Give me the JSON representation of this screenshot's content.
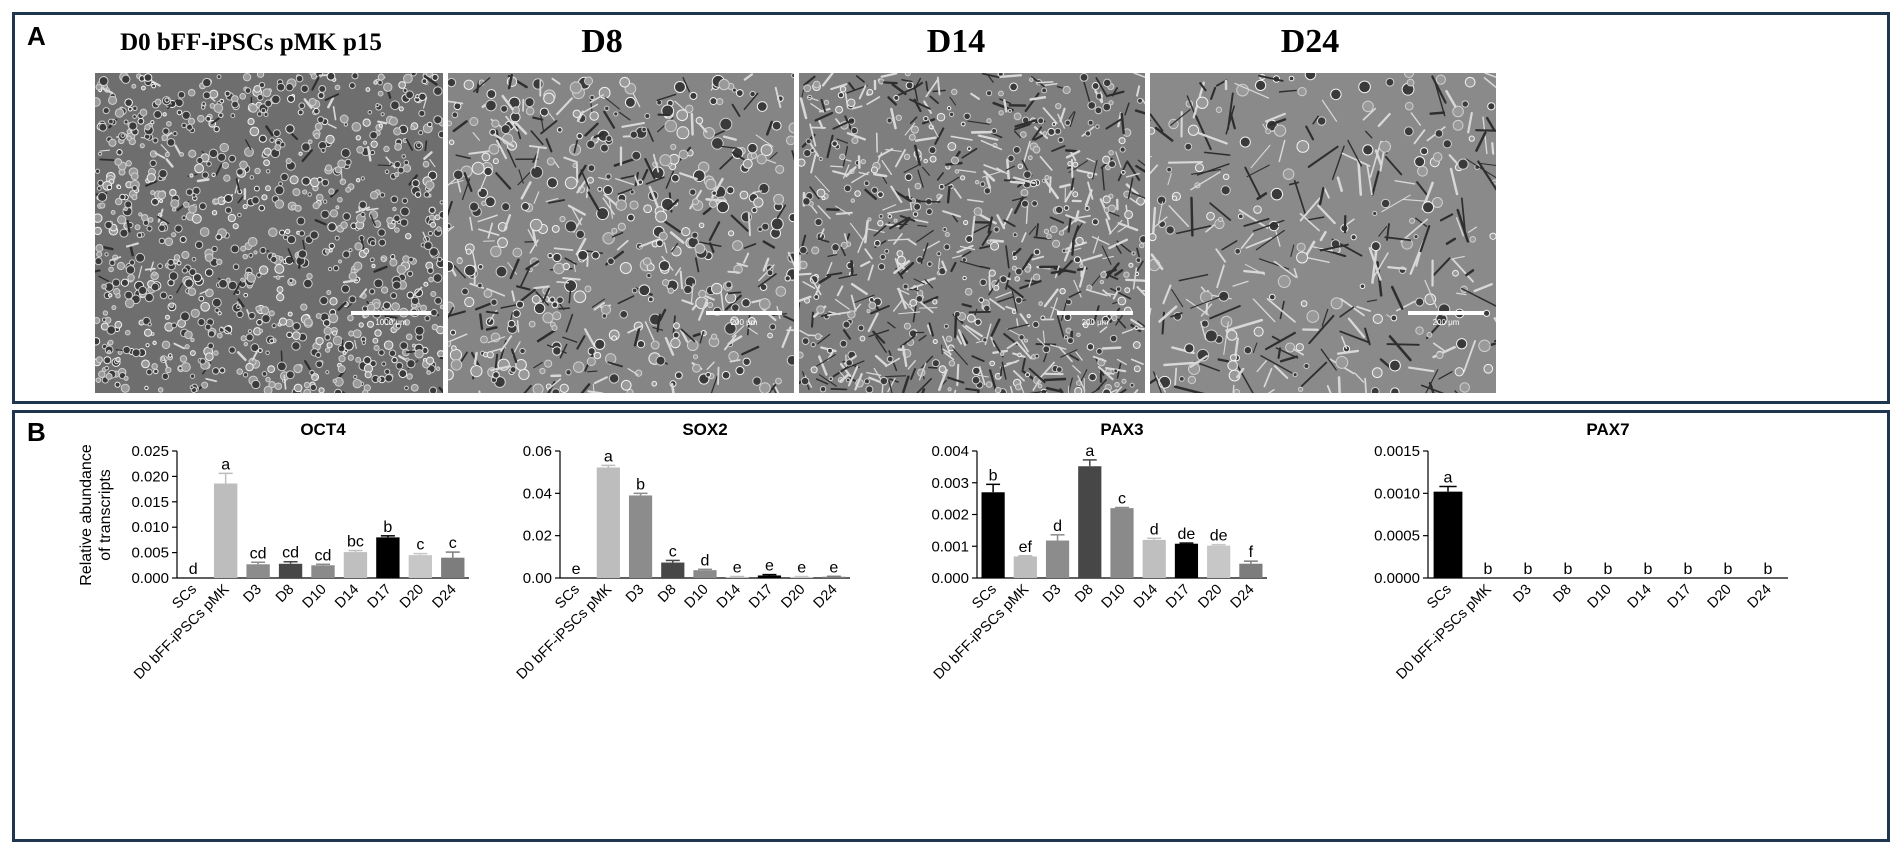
{
  "panel_a": {
    "letter": "A",
    "images": [
      {
        "title": "D0 bFF-iPSCs pMK p15",
        "scale_bar": "1000 μm"
      },
      {
        "title": "D8",
        "scale_bar": "200 μm"
      },
      {
        "title": "D14",
        "scale_bar": "200 μm"
      },
      {
        "title": "D24",
        "scale_bar": "200 μm"
      }
    ]
  },
  "panel_b": {
    "letter": "B"
  },
  "chart_data": [
    {
      "type": "bar",
      "title": "OCT4",
      "ylabel": [
        "Relative abundance",
        "of transcripts"
      ],
      "xlabel": "",
      "ylim": [
        0,
        0.025
      ],
      "yticks": [
        "0.000",
        "0.005",
        "0.010",
        "0.015",
        "0.020",
        "0.025"
      ],
      "categories": [
        "SCs",
        "D0 bFF-iPSCs pMK",
        "D3",
        "D8",
        "D10",
        "D14",
        "D17",
        "D20",
        "D24"
      ],
      "values": [
        0,
        0.0186,
        0.0027,
        0.0028,
        0.0025,
        0.0051,
        0.008,
        0.0045,
        0.004
      ],
      "errors": [
        0,
        0.002,
        0.0004,
        0.0004,
        0.0002,
        0.0003,
        0.0003,
        0.0003,
        0.0011
      ],
      "letters": [
        "d",
        "a",
        "cd",
        "cd",
        "cd",
        "bc",
        "b",
        "c",
        "c"
      ],
      "colors": [
        "#000000",
        "#bdbdbd",
        "#8c8c8c",
        "#474747",
        "#8a8a8a",
        "#bfbfbf",
        "#000000",
        "#c7c7c7",
        "#7d7d7d"
      ]
    },
    {
      "type": "bar",
      "title": "SOX2",
      "ylabel": [],
      "xlabel": "",
      "ylim": [
        0,
        0.06
      ],
      "yticks": [
        "0.00",
        "0.02",
        "0.04",
        "0.06"
      ],
      "categories": [
        "SCs",
        "D0 bFF-iPSCs pMK",
        "D3",
        "D8",
        "D10",
        "D14",
        "D17",
        "D20",
        "D24"
      ],
      "values": [
        0,
        0.0522,
        0.039,
        0.0073,
        0.0037,
        0.0005,
        0.0012,
        0.0005,
        0.0006
      ],
      "errors": [
        0,
        0.001,
        0.001,
        0.001,
        0.0004,
        0.0002,
        0.0004,
        0.0002,
        0.0002
      ],
      "letters": [
        "e",
        "a",
        "b",
        "c",
        "d",
        "e",
        "e",
        "e",
        "e"
      ],
      "colors": [
        "#000000",
        "#bdbdbd",
        "#8c8c8c",
        "#474747",
        "#8a8a8a",
        "#bfbfbf",
        "#000000",
        "#c7c7c7",
        "#7d7d7d"
      ]
    },
    {
      "type": "bar",
      "title": "PAX3",
      "ylabel": [],
      "xlabel": "",
      "ylim": [
        0,
        0.004
      ],
      "yticks": [
        "0.000",
        "0.001",
        "0.002",
        "0.003",
        "0.004"
      ],
      "categories": [
        "SCs",
        "D0 bFF-iPSCs pMK",
        "D3",
        "D8",
        "D10",
        "D14",
        "D17",
        "D20",
        "D24"
      ],
      "values": [
        0.0027,
        0.00068,
        0.00118,
        0.00352,
        0.0022,
        0.0012,
        0.00108,
        0.00102,
        0.00045
      ],
      "errors": [
        0.00025,
        2e-05,
        0.00018,
        0.0002,
        2e-05,
        5e-05,
        2e-05,
        3e-05,
        8e-05
      ],
      "letters": [
        "b",
        "ef",
        "d",
        "a",
        "c",
        "d",
        "de",
        "de",
        "f"
      ],
      "colors": [
        "#000000",
        "#bdbdbd",
        "#8c8c8c",
        "#474747",
        "#8a8a8a",
        "#bfbfbf",
        "#000000",
        "#c7c7c7",
        "#7d7d7d"
      ]
    },
    {
      "type": "bar",
      "title": "PAX7",
      "ylabel": [],
      "xlabel": "",
      "ylim": [
        0,
        0.0015
      ],
      "yticks": [
        "0.0000",
        "0.0005",
        "0.0010",
        "0.0015"
      ],
      "categories": [
        "SCs",
        "D0 bFF-iPSCs pMK",
        "D3",
        "D8",
        "D10",
        "D14",
        "D17",
        "D20",
        "D24"
      ],
      "values": [
        0.00102,
        0,
        0,
        0,
        0,
        0,
        0,
        0,
        0
      ],
      "errors": [
        6e-05,
        0,
        0,
        0,
        0,
        0,
        0,
        0,
        0
      ],
      "letters": [
        "a",
        "b",
        "b",
        "b",
        "b",
        "b",
        "b",
        "b",
        "b"
      ],
      "colors": [
        "#000000",
        "#bdbdbd",
        "#8c8c8c",
        "#474747",
        "#8a8a8a",
        "#bfbfbf",
        "#000000",
        "#c7c7c7",
        "#7d7d7d"
      ]
    }
  ]
}
